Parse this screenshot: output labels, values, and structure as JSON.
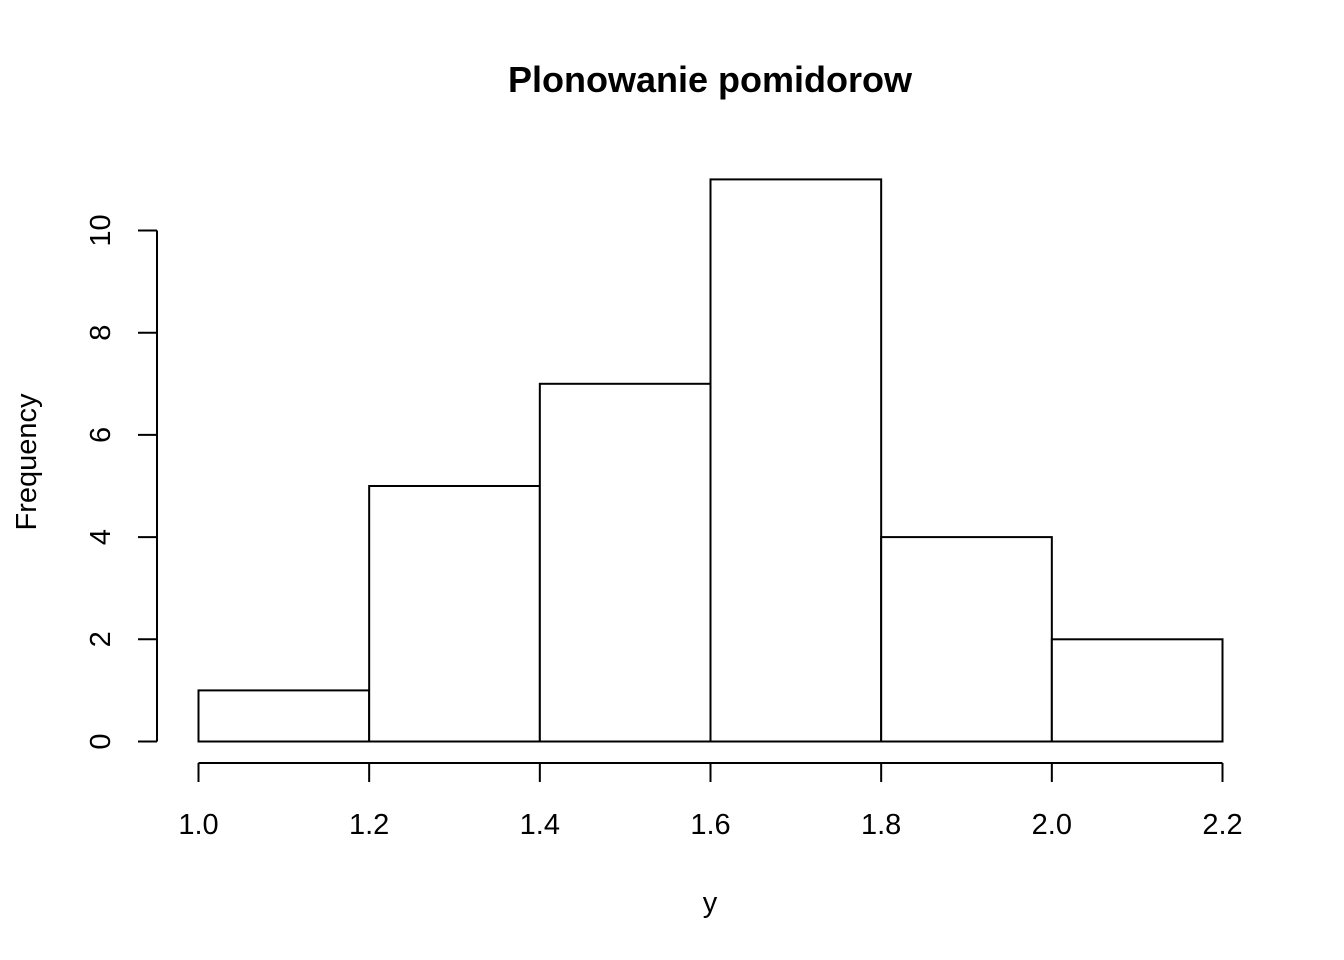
{
  "chart_data": {
    "type": "bar",
    "title": "Plonowanie pomidorow",
    "xlabel": "y",
    "ylabel": "Frequency",
    "bins": [
      {
        "from": 1.0,
        "to": 1.2,
        "count": 1
      },
      {
        "from": 1.2,
        "to": 1.4,
        "count": 5
      },
      {
        "from": 1.4,
        "to": 1.6,
        "count": 7
      },
      {
        "from": 1.6,
        "to": 1.8,
        "count": 11
      },
      {
        "from": 1.8,
        "to": 2.0,
        "count": 4
      },
      {
        "from": 2.0,
        "to": 2.2,
        "count": 2
      }
    ],
    "xlim": [
      1.0,
      2.2
    ],
    "ylim": [
      0,
      11
    ],
    "x_ticks": [
      "1.0",
      "1.2",
      "1.4",
      "1.6",
      "1.8",
      "2.0",
      "2.2"
    ],
    "y_ticks": [
      "0",
      "2",
      "4",
      "6",
      "8",
      "10"
    ],
    "grid": false,
    "colors": {
      "bar_fill": "#ffffff",
      "stroke": "#000000"
    }
  }
}
